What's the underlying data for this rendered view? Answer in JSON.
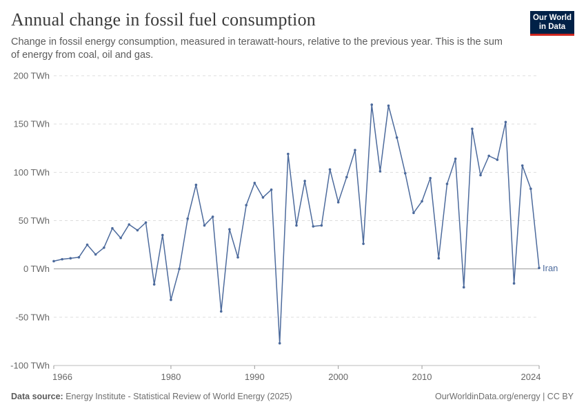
{
  "header": {
    "title": "Annual change in fossil fuel consumption",
    "subtitle": "Change in fossil energy consumption, measured in terawatt-hours, relative to the previous year. This is the sum of energy from coal, oil and gas.",
    "logo_line1": "Our World",
    "logo_line2": "in Data"
  },
  "footer": {
    "source_label": "Data source:",
    "source_text": "Energy Institute - Statistical Review of World Energy (2025)",
    "credit": "OurWorldinData.org/energy | CC BY"
  },
  "colors": {
    "series": "#4c6a9c",
    "grid": "#dddddd",
    "zero": "#999999",
    "text": "#666666"
  },
  "chart_data": {
    "type": "line",
    "ylim": [
      -100,
      200
    ],
    "xlim": [
      1966,
      2024
    ],
    "y_ticks": [
      -100,
      -50,
      0,
      50,
      100,
      150,
      200
    ],
    "y_tick_labels": [
      "-100 TWh",
      "-50 TWh",
      "0 TWh",
      "50 TWh",
      "100 TWh",
      "150 TWh",
      "200 TWh"
    ],
    "x_ticks": [
      1966,
      1980,
      1990,
      2000,
      2010,
      2024
    ],
    "x_tick_labels": [
      "1966",
      "1980",
      "1990",
      "2000",
      "2010",
      "2024"
    ],
    "grid": "horizontal dashed",
    "series": [
      {
        "name": "Iran",
        "x": [
          1966,
          1967,
          1968,
          1969,
          1970,
          1971,
          1972,
          1973,
          1974,
          1975,
          1976,
          1977,
          1978,
          1979,
          1980,
          1981,
          1982,
          1983,
          1984,
          1985,
          1986,
          1987,
          1988,
          1989,
          1990,
          1991,
          1992,
          1993,
          1994,
          1995,
          1996,
          1997,
          1998,
          1999,
          2000,
          2001,
          2002,
          2003,
          2004,
          2005,
          2006,
          2007,
          2008,
          2009,
          2010,
          2011,
          2012,
          2013,
          2014,
          2015,
          2016,
          2017,
          2018,
          2019,
          2020,
          2021,
          2022,
          2023,
          2024
        ],
        "values": [
          8,
          10,
          11,
          12,
          25,
          15,
          22,
          42,
          32,
          46,
          40,
          48,
          -16,
          35,
          -32,
          0,
          52,
          87,
          45,
          54,
          -44,
          41,
          12,
          66,
          89,
          74,
          82,
          -77,
          119,
          45,
          91,
          44,
          45,
          103,
          69,
          95,
          123,
          26,
          170,
          101,
          169,
          136,
          99,
          58,
          70,
          94,
          11,
          88,
          114,
          -19,
          145,
          97,
          117,
          113,
          152,
          -15,
          107,
          83,
          1
        ]
      }
    ]
  }
}
